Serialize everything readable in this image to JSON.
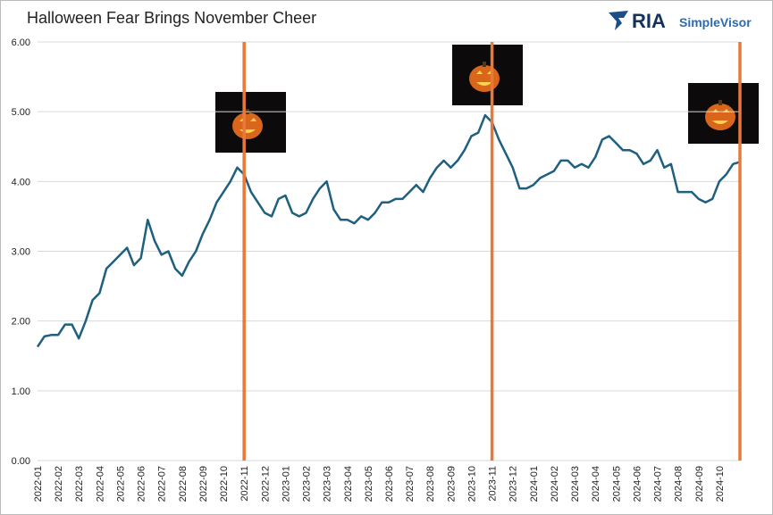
{
  "chart_data": {
    "type": "line",
    "title": "Halloween Fear Brings November Cheer",
    "brand": {
      "name": "RIA",
      "product": "SimpleVisor"
    },
    "categories": [
      "2022-01",
      null,
      null,
      "2022-02",
      null,
      null,
      "2022-03",
      null,
      null,
      "2022-04",
      null,
      null,
      "2022-05",
      null,
      null,
      "2022-06",
      null,
      null,
      "2022-07",
      null,
      null,
      "2022-08",
      null,
      null,
      "2022-09",
      null,
      null,
      "2022-10",
      null,
      null,
      "2022-11",
      null,
      null,
      "2022-12",
      null,
      null,
      "2023-01",
      null,
      null,
      "2023-02",
      null,
      null,
      "2023-03",
      null,
      null,
      "2023-04",
      null,
      null,
      "2023-05",
      null,
      null,
      "2023-06",
      null,
      null,
      "2023-07",
      null,
      null,
      "2023-08",
      null,
      null,
      "2023-09",
      null,
      null,
      "2023-10",
      null,
      null,
      "2023-11",
      null,
      null,
      "2023-12",
      null,
      null,
      "2024-01",
      null,
      null,
      "2024-02",
      null,
      null,
      "2024-03",
      null,
      null,
      "2024-04",
      null,
      null,
      "2024-05",
      null,
      null,
      "2024-06",
      null,
      null,
      "2024-07",
      null,
      null,
      "2024-08",
      null,
      null,
      "2024-09",
      null,
      null,
      "2024-10",
      null,
      null,
      null
    ],
    "values": [
      1.63,
      1.78,
      1.8,
      1.8,
      1.95,
      1.95,
      1.75,
      2.0,
      2.3,
      2.4,
      2.75,
      2.85,
      2.95,
      3.05,
      2.8,
      2.9,
      3.45,
      3.15,
      2.95,
      3.0,
      2.75,
      2.65,
      2.85,
      3.0,
      3.25,
      3.45,
      3.7,
      3.85,
      4.0,
      4.2,
      4.1,
      3.85,
      3.7,
      3.55,
      3.5,
      3.75,
      3.8,
      3.55,
      3.5,
      3.55,
      3.75,
      3.9,
      4.0,
      3.6,
      3.45,
      3.45,
      3.4,
      3.5,
      3.45,
      3.55,
      3.7,
      3.7,
      3.75,
      3.75,
      3.85,
      3.95,
      3.85,
      4.05,
      4.2,
      4.3,
      4.2,
      4.3,
      4.45,
      4.65,
      4.7,
      4.95,
      4.85,
      4.6,
      4.4,
      4.2,
      3.9,
      3.9,
      3.95,
      4.05,
      4.1,
      4.15,
      4.3,
      4.3,
      4.2,
      4.25,
      4.2,
      4.35,
      4.6,
      4.65,
      4.55,
      4.45,
      4.45,
      4.4,
      4.25,
      4.3,
      4.45,
      4.2,
      4.25,
      3.85,
      3.85,
      3.85,
      3.75,
      3.7,
      3.75,
      4.0,
      4.1,
      4.25,
      4.28
    ],
    "color": "#1f5f7f",
    "vlines": {
      "color": "#e8793a",
      "at": [
        30,
        66,
        102
      ]
    },
    "ylim": [
      0,
      6
    ],
    "yticks": [
      {
        "value": 0,
        "label": "0.00"
      },
      {
        "value": 1,
        "label": "1.00"
      },
      {
        "value": 2,
        "label": "2.00"
      },
      {
        "value": 3,
        "label": "3.00"
      },
      {
        "value": 4,
        "label": "4.00"
      },
      {
        "value": 5,
        "label": "5.00"
      },
      {
        "value": 6,
        "label": "6.00"
      }
    ],
    "grid": true
  }
}
